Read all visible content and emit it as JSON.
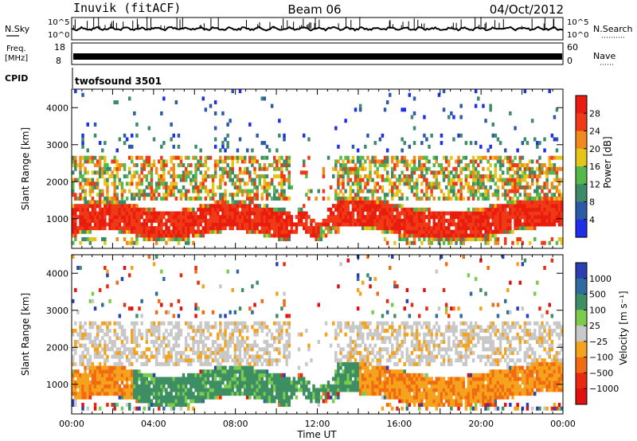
{
  "header": {
    "title": "Inuvik (fitACF)",
    "beam": "Beam 06",
    "date": "04/Oct/2012"
  },
  "strips": {
    "nsky": {
      "label": "N.Sky",
      "tick_high": "10^5",
      "tick_low": "10^0"
    },
    "nsearch": {
      "label": "N.Search",
      "tick_high": "10^5",
      "tick_low": "10^0"
    },
    "freq": {
      "label_line1": "Freq.",
      "label_line2": "[MHz]",
      "tick_high": "18",
      "tick_low": "8"
    },
    "nave": {
      "label": "Nave",
      "tick_high": "60",
      "tick_low": "0"
    },
    "cpid": {
      "label": "CPID",
      "value": "twofsound 3501"
    }
  },
  "chart_data": [
    {
      "type": "heatmap",
      "name": "power",
      "ylabel": "Slant Range [km]",
      "xlim": [
        0,
        24
      ],
      "ylim": [
        200,
        4500
      ],
      "yticks": [
        1000,
        2000,
        3000,
        4000
      ],
      "colorbar": {
        "label": "Power [dB]",
        "ticks": [
          "4",
          "8",
          "12",
          "16",
          "20",
          "24",
          "28"
        ],
        "colors": [
          "#1f2fe8",
          "#2c5aa8",
          "#3d8a6a",
          "#55b84a",
          "#e6c51b",
          "#f08a1c",
          "#f03a17",
          "#e81d0d"
        ]
      }
    },
    {
      "type": "heatmap",
      "name": "velocity",
      "ylabel": "Slant Range [km]",
      "xlabel": "Time UT",
      "xlim": [
        0,
        24
      ],
      "ylim": [
        200,
        4500
      ],
      "xticks": [
        "00:00",
        "04:00",
        "08:00",
        "12:00",
        "16:00",
        "20:00",
        "00:00"
      ],
      "yticks": [
        1000,
        2000,
        3000,
        4000
      ],
      "colorbar": {
        "label": "Velocity [m s⁻¹]",
        "ticks": [
          "1000",
          "500",
          "100",
          "25",
          "−25",
          "−100",
          "−500",
          "−1000"
        ],
        "colors": [
          "#2a3fb0",
          "#2f6aa0",
          "#3e8e64",
          "#7ccc4c",
          "#c8c8c8",
          "#f5a21d",
          "#f26a12",
          "#e82a10",
          "#e01010"
        ]
      }
    }
  ]
}
